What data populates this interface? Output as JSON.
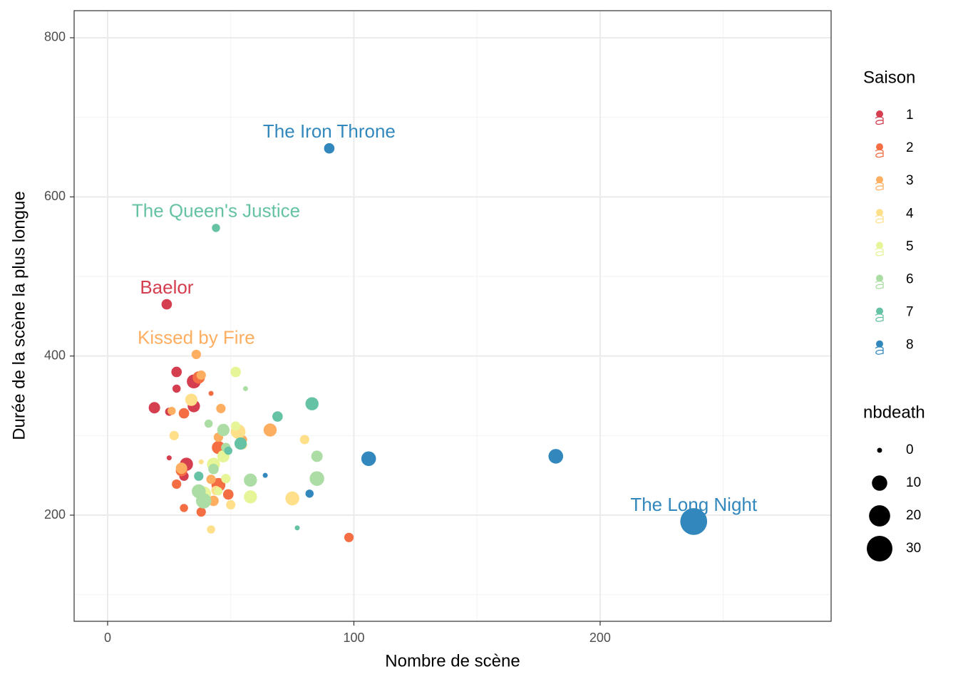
{
  "chart_data": {
    "type": "scatter",
    "x_label": "Nombre de scène",
    "y_label": "Durée de la scène la plus longue",
    "xlim": [
      -13.6,
      293.8
    ],
    "ylim": [
      66.6,
      834
    ],
    "xticks": [
      0,
      100,
      200
    ],
    "yticks": [
      200,
      400,
      600,
      800
    ],
    "minor_xticks": [
      50,
      150,
      250
    ],
    "minor_yticks": [
      100,
      300,
      500,
      700
    ],
    "grid": true,
    "legend_title": "Saison",
    "size_legend": {
      "title": "nbdeath",
      "values": [
        0,
        10,
        20,
        30
      ]
    },
    "series": [
      {
        "name": "1",
        "color": "#D53E4F",
        "x": [
          24,
          28,
          28,
          19,
          25,
          35,
          35,
          25,
          32,
          31
        ],
        "values": [
          465,
          380,
          359,
          335,
          330,
          368,
          337,
          272,
          264,
          249
        ],
        "sizes": [
          4,
          4,
          2,
          5,
          2,
          8,
          6,
          0,
          7,
          3
        ]
      },
      {
        "name": "2",
        "color": "#F46D43",
        "x": [
          42,
          37,
          31,
          30,
          28,
          31,
          38,
          45,
          45,
          49,
          98
        ],
        "values": [
          353,
          373,
          328,
          256,
          239,
          209,
          204,
          285,
          238,
          226,
          172
        ],
        "sizes": [
          0,
          6,
          4,
          5,
          3,
          2,
          3,
          7,
          8,
          4,
          3
        ]
      },
      {
        "name": "3",
        "color": "#FDAE61",
        "x": [
          36,
          46,
          66,
          26,
          30,
          42,
          45,
          43,
          55,
          38
        ],
        "values": [
          402,
          334,
          307,
          331,
          259,
          245,
          298,
          218,
          295,
          376
        ],
        "sizes": [
          3,
          3,
          7,
          2,
          5,
          3,
          3,
          4,
          2,
          3
        ]
      },
      {
        "name": "4",
        "color": "#FEE08B",
        "x": [
          27,
          34,
          38,
          42,
          53,
          50,
          75,
          80,
          55,
          44
        ],
        "values": [
          300,
          345,
          267,
          182,
          305,
          213,
          221,
          295,
          288,
          231
        ],
        "sizes": [
          3,
          6,
          0,
          2,
          9,
          3,
          8,
          3,
          2,
          3
        ]
      },
      {
        "name": "5",
        "color": "#E6F598",
        "x": [
          52,
          52,
          47,
          43,
          37,
          58,
          45,
          39,
          48
        ],
        "values": [
          380,
          312,
          274,
          264,
          233,
          223,
          230,
          227,
          246
        ],
        "sizes": [
          4,
          3,
          6,
          7,
          2,
          7,
          2,
          9,
          3
        ]
      },
      {
        "name": "6",
        "color": "#ABDDA4",
        "x": [
          56,
          41,
          47,
          85,
          85,
          58,
          39,
          43,
          48,
          37
        ],
        "values": [
          359,
          315,
          307,
          274,
          246,
          244,
          218,
          258,
          285,
          230
        ],
        "sizes": [
          0,
          2,
          6,
          5,
          9,
          7,
          10,
          4,
          3,
          8
        ]
      },
      {
        "name": "7",
        "color": "#66C2A5",
        "x": [
          44,
          83,
          69,
          54,
          37,
          77,
          49
        ],
        "values": [
          561,
          340,
          324,
          290,
          249,
          184,
          281
        ],
        "sizes": [
          2,
          7,
          4,
          6,
          3,
          0,
          2
        ]
      },
      {
        "name": "8",
        "color": "#3288BD",
        "x": [
          90,
          106,
          182,
          238,
          82,
          64
        ],
        "values": [
          661,
          271,
          274,
          192,
          227,
          250
        ],
        "sizes": [
          4,
          9,
          9,
          33,
          2,
          0
        ]
      }
    ],
    "annotations": [
      {
        "text": "The Iron Throne",
        "x": 90,
        "y": 661,
        "color": "#3288BD"
      },
      {
        "text": "The Queen's Justice",
        "x": 44,
        "y": 561,
        "color": "#66C2A5"
      },
      {
        "text": "Baelor",
        "x": 24,
        "y": 465,
        "color": "#D53E4F"
      },
      {
        "text": "Kissed by Fire",
        "x": 36,
        "y": 402,
        "color": "#FDAE61"
      },
      {
        "text": "The Long Night",
        "x": 238,
        "y": 192,
        "color": "#3288BD"
      }
    ]
  }
}
